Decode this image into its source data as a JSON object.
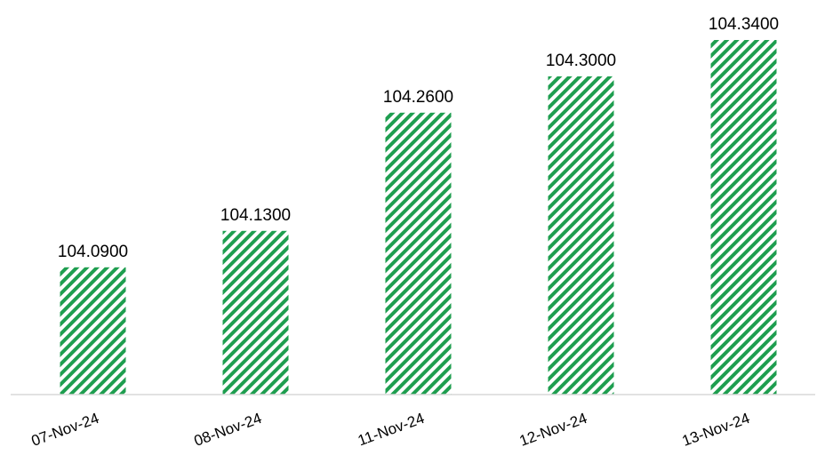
{
  "chart_data": {
    "type": "bar",
    "title": "",
    "xlabel": "",
    "ylabel": "",
    "categories": [
      "07-Nov-24",
      "08-Nov-24",
      "11-Nov-24",
      "12-Nov-24",
      "13-Nov-24"
    ],
    "values": [
      104.09,
      104.13,
      104.26,
      104.3,
      104.34
    ],
    "value_labels": [
      "104.0900",
      "104.1300",
      "104.2600",
      "104.3000",
      "104.3400"
    ],
    "ylim": [
      103.95,
      104.34
    ],
    "grid": false,
    "legend": "none",
    "bar_pattern": "diagonal-stripes",
    "colors": {
      "bar_stripe": "#1e9e4f",
      "bar_background": "#ffffff",
      "axis": "#d9d9d9",
      "text": "#000000"
    }
  }
}
